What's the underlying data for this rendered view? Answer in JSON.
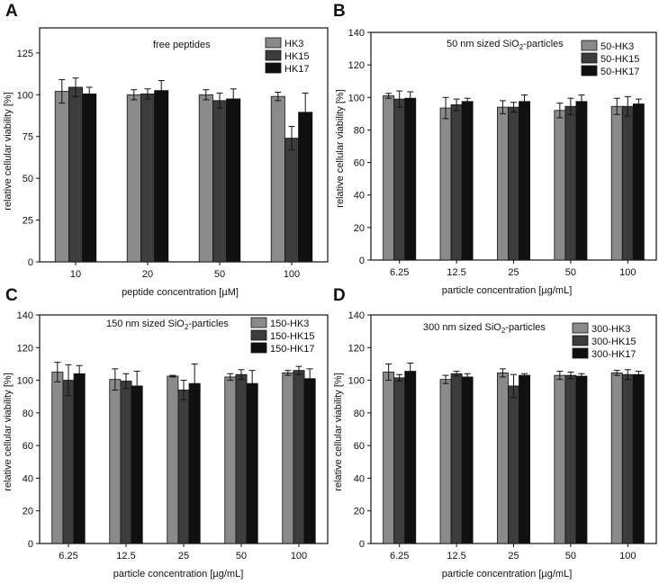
{
  "figure": {
    "description_panels": 4
  },
  "chart_data": [
    {
      "type": "bar",
      "panel_letter": "A",
      "title": "free peptides",
      "title_sub": "",
      "title_tail": "",
      "xlabel": "peptide concentration [µM]",
      "ylabel": "relative cellular viability [%]",
      "ylim": [
        0,
        140
      ],
      "yticks": [
        0,
        25,
        50,
        75,
        100,
        125
      ],
      "ytick_labels": [
        "0",
        "25",
        "50",
        "75",
        "100",
        "125"
      ],
      "categories": [
        "10",
        "20",
        "50",
        "100"
      ],
      "legend_position": "top-right",
      "series": [
        {
          "name": "HK3",
          "color": "#8a8a8a",
          "values": [
            102,
            100,
            100,
            99
          ],
          "errors": [
            7,
            3,
            3,
            2.5
          ]
        },
        {
          "name": "HK15",
          "color": "#3c3c3c",
          "values": [
            104.5,
            100.5,
            96.5,
            74
          ],
          "errors": [
            5.5,
            3,
            4.5,
            7
          ]
        },
        {
          "name": "HK17",
          "color": "#101010",
          "values": [
            100.5,
            102.5,
            97.5,
            89.5
          ],
          "errors": [
            4,
            6,
            6,
            11.5
          ]
        }
      ]
    },
    {
      "type": "bar",
      "panel_letter": "B",
      "title": "50 nm sized SiO",
      "title_sub": "2",
      "title_tail": "-particles",
      "xlabel": "particle concentration [µg/mL]",
      "ylabel": "relative cellular viability [%]",
      "ylim": [
        0,
        140
      ],
      "yticks": [
        0,
        20,
        40,
        60,
        80,
        100,
        120,
        140
      ],
      "ytick_labels": [
        "0",
        "20",
        "40",
        "60",
        "80",
        "100",
        "120",
        "140"
      ],
      "categories": [
        "6.25",
        "12.5",
        "25",
        "50",
        "100"
      ],
      "legend_position": "top-right",
      "series": [
        {
          "name": "50-HK3",
          "color": "#8a8a8a",
          "values": [
            101,
            93.5,
            94,
            92,
            94.5
          ],
          "errors": [
            1.5,
            6.5,
            4,
            4.5,
            5
          ]
        },
        {
          "name": "50-HK15",
          "color": "#3c3c3c",
          "values": [
            99,
            95.5,
            94,
            94.5,
            94.5
          ],
          "errors": [
            5,
            3.5,
            3,
            5,
            6
          ]
        },
        {
          "name": "50-HK17",
          "color": "#101010",
          "values": [
            99.5,
            97.5,
            97.5,
            97.5,
            96
          ],
          "errors": [
            4,
            2,
            4,
            4,
            3
          ]
        }
      ]
    },
    {
      "type": "bar",
      "panel_letter": "C",
      "title": "150 nm sized SiO",
      "title_sub": "2",
      "title_tail": "-particles",
      "xlabel": "particle concentration [µg/mL]",
      "ylabel": "relative cellular viability [%]",
      "ylim": [
        0,
        140
      ],
      "yticks": [
        0,
        20,
        40,
        60,
        80,
        100,
        120,
        140
      ],
      "ytick_labels": [
        "0",
        "20",
        "40",
        "60",
        "80",
        "100",
        "120",
        "140"
      ],
      "categories": [
        "6.25",
        "12.5",
        "25",
        "50",
        "100"
      ],
      "legend_position": "top-right",
      "series": [
        {
          "name": "150-HK3",
          "color": "#8a8a8a",
          "values": [
            105,
            100.5,
            102.5,
            102,
            104.5
          ],
          "errors": [
            6,
            6.5,
            0.5,
            2,
            1.5
          ]
        },
        {
          "name": "150-HK15",
          "color": "#3c3c3c",
          "values": [
            100,
            99.5,
            94,
            103.5,
            106
          ],
          "errors": [
            9.5,
            4.5,
            6,
            3,
            2.5
          ]
        },
        {
          "name": "150-HK17",
          "color": "#101010",
          "values": [
            104,
            96.5,
            98,
            98,
            101
          ],
          "errors": [
            5,
            9,
            12,
            8,
            6
          ]
        }
      ]
    },
    {
      "type": "bar",
      "panel_letter": "D",
      "title": "300 nm sized SiO",
      "title_sub": "2",
      "title_tail": "-particles",
      "xlabel": "particle concentration [µg/mL]",
      "ylabel": "relative cellular viability [%]",
      "ylim": [
        0,
        140
      ],
      "yticks": [
        0,
        20,
        40,
        60,
        80,
        100,
        120,
        140
      ],
      "ytick_labels": [
        "0",
        "20",
        "40",
        "60",
        "80",
        "100",
        "120",
        "140"
      ],
      "categories": [
        "6.25",
        "12.5",
        "25",
        "50",
        "100"
      ],
      "legend_position": "top-right",
      "series": [
        {
          "name": "300-HK3",
          "color": "#8a8a8a",
          "values": [
            105,
            100.5,
            104.5,
            103,
            104.5
          ],
          "errors": [
            5,
            2.5,
            2.5,
            2.5,
            1.5
          ]
        },
        {
          "name": "300-HK15",
          "color": "#3c3c3c",
          "values": [
            101.5,
            104,
            96.5,
            103,
            103.5
          ],
          "errors": [
            2,
            1.5,
            7,
            2,
            3
          ]
        },
        {
          "name": "300-HK17",
          "color": "#101010",
          "values": [
            105.5,
            102,
            103,
            102.5,
            103.5
          ],
          "errors": [
            5,
            2,
            1,
            1.5,
            2
          ]
        }
      ]
    }
  ]
}
